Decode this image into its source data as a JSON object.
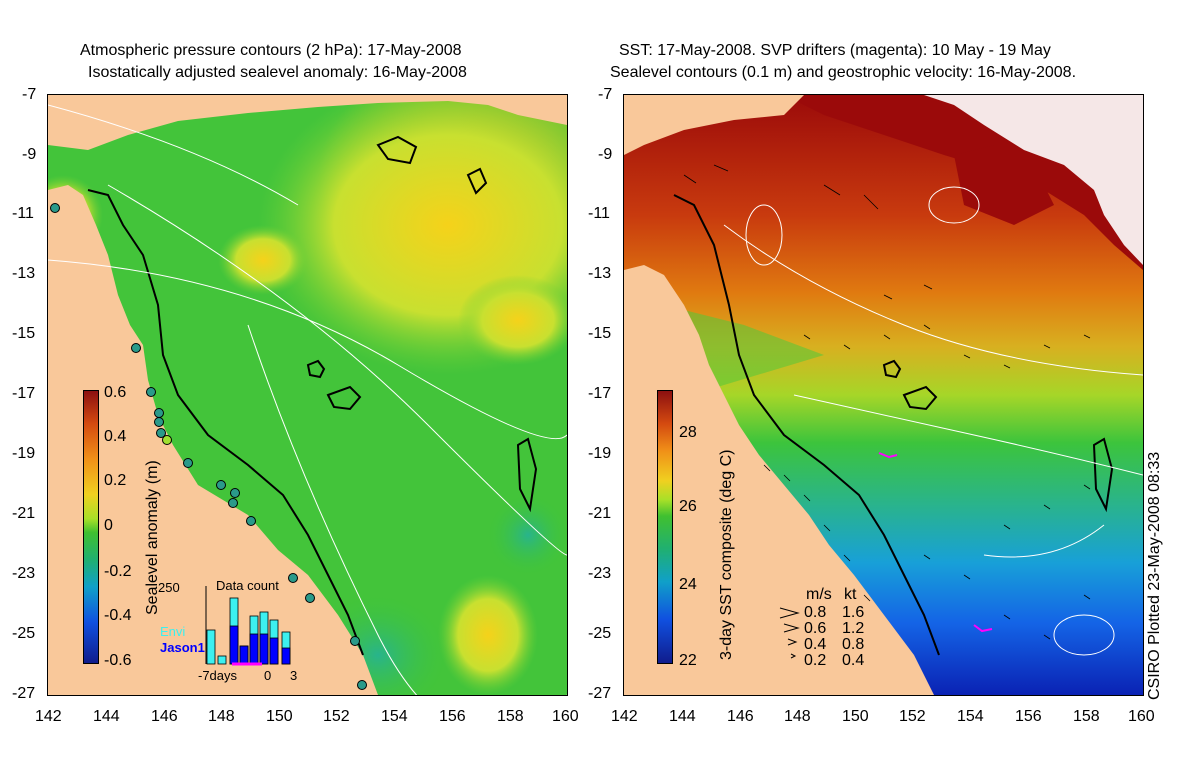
{
  "left_panel": {
    "title_line1": "Atmospheric pressure contours (2 hPa): 17-May-2008",
    "title_line2": "Isostatically adjusted sealevel anomaly: 16-May-2008",
    "y_ticks": [
      "-7",
      "-9",
      "-11",
      "-13",
      "-15",
      "-17",
      "-19",
      "-21",
      "-23",
      "-25",
      "-27"
    ],
    "x_ticks": [
      "142",
      "144",
      "146",
      "148",
      "150",
      "152",
      "154",
      "156",
      "158",
      "160"
    ],
    "colorbar": {
      "label": "Sealevel anomaly (m)",
      "ticks": [
        "0.6",
        "0.4",
        "0.2",
        "0",
        "-0.2",
        "-0.4",
        "-0.6"
      ]
    },
    "inset": {
      "title": "Data count",
      "y_max_label": "250",
      "legend": [
        {
          "name": "Envi",
          "color": "#3cf0f0"
        },
        {
          "name": "Jason1",
          "color": "#0000ff"
        }
      ],
      "x_labels": [
        "-7days",
        "0",
        "3"
      ]
    }
  },
  "right_panel": {
    "title_line1": "SST: 17-May-2008. SVP drifters (magenta): 10 May - 19 May",
    "title_line2": "Sealevel contours (0.1 m) and geostrophic velocity: 16-May-2008.",
    "y_ticks": [
      "-7",
      "-9",
      "-11",
      "-13",
      "-15",
      "-17",
      "-19",
      "-21",
      "-23",
      "-25",
      "-27"
    ],
    "x_ticks": [
      "142",
      "144",
      "146",
      "148",
      "150",
      "152",
      "154",
      "156",
      "158",
      "160"
    ],
    "colorbar": {
      "label": "3-day SST composite (deg C)",
      "ticks": [
        "28",
        "26",
        "24",
        "22"
      ]
    },
    "velocity_legend": {
      "header_ms": "m/s",
      "header_kt": "kt",
      "rows": [
        {
          "ms": "0.8",
          "kt": "1.6"
        },
        {
          "ms": "0.6",
          "kt": "1.2"
        },
        {
          "ms": "0.4",
          "kt": "0.8"
        },
        {
          "ms": "0.2",
          "kt": "0.4"
        }
      ]
    }
  },
  "credit": "CSIRO Plotted 23-May-2008 08:33",
  "colors": {
    "land": "#f9c89a",
    "ocean_green": "#3cc43c",
    "warm_red": "#9b0a0a",
    "orange": "#e07a10",
    "deep_blue": "#0a22b4"
  }
}
